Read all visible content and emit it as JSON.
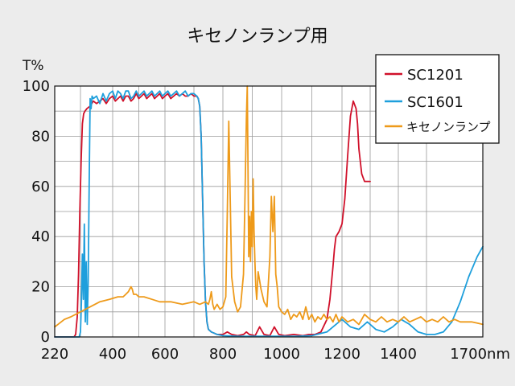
{
  "chart_data": {
    "type": "line",
    "title": "キセノンランプ用",
    "xlabel": "",
    "ylabel": "T%",
    "x_unit": "nm",
    "xlim": [
      220,
      1700
    ],
    "ylim": [
      0,
      100
    ],
    "grid": true,
    "legend_position": "top-right",
    "x_ticks": [
      {
        "value": 220,
        "label": "220"
      },
      {
        "value": 400,
        "label": "400"
      },
      {
        "value": 600,
        "label": "600"
      },
      {
        "value": 800,
        "label": "800"
      },
      {
        "value": 1000,
        "label": "1000"
      },
      {
        "value": 1200,
        "label": "1200"
      },
      {
        "value": 1400,
        "label": "1400"
      },
      {
        "value": 1700,
        "label": "1700nm"
      }
    ],
    "x_grid": [
      220,
      300,
      400,
      500,
      600,
      700,
      800,
      900,
      1000,
      1100,
      1200,
      1300,
      1400,
      1500,
      1700
    ],
    "y_ticks": [
      {
        "value": 0,
        "label": "0"
      },
      {
        "value": 20,
        "label": "20"
      },
      {
        "value": 40,
        "label": "40"
      },
      {
        "value": 60,
        "label": "60"
      },
      {
        "value": 80,
        "label": "80"
      },
      {
        "value": 100,
        "label": "100"
      }
    ],
    "y_grid": [
      0,
      10,
      20,
      30,
      40,
      50,
      60,
      70,
      80,
      90,
      100
    ],
    "series": [
      {
        "name": "SC1201",
        "color": "#d0102a",
        "x": [
          220,
          280,
          285,
          290,
          294,
          298,
          302,
          306,
          310,
          314,
          320,
          330,
          340,
          350,
          360,
          370,
          380,
          390,
          400,
          410,
          420,
          430,
          440,
          450,
          460,
          470,
          480,
          490,
          500,
          510,
          520,
          530,
          540,
          550,
          560,
          570,
          580,
          590,
          600,
          610,
          620,
          630,
          640,
          650,
          660,
          670,
          680,
          690,
          700,
          710,
          715,
          720,
          725,
          730,
          735,
          740,
          745,
          750,
          760,
          770,
          780,
          800,
          815,
          830,
          850,
          870,
          880,
          890,
          910,
          925,
          940,
          960,
          975,
          990,
          1010,
          1040,
          1070,
          1090,
          1110,
          1130,
          1150,
          1160,
          1170,
          1175,
          1180,
          1185,
          1190,
          1200,
          1210,
          1220,
          1230,
          1240,
          1250,
          1255,
          1260,
          1270,
          1280,
          1290,
          1300
        ],
        "y": [
          0,
          0,
          1,
          8,
          25,
          50,
          70,
          85,
          89,
          90,
          91,
          92,
          94,
          93,
          94,
          95,
          93,
          95,
          96,
          94,
          95,
          96,
          94,
          96,
          96,
          94,
          95,
          97,
          95,
          96,
          97,
          95,
          96,
          97,
          95,
          96,
          97,
          95,
          96,
          97,
          95,
          96,
          97,
          96,
          97,
          96,
          96,
          97,
          96,
          96,
          95,
          92,
          80,
          55,
          30,
          14,
          6,
          3,
          2,
          1.5,
          1,
          1,
          2,
          1,
          0.5,
          1,
          2,
          1,
          0.5,
          4,
          1,
          0.5,
          4,
          1,
          0.5,
          1,
          0.5,
          1,
          1,
          2,
          7,
          15,
          28,
          35,
          40,
          41,
          42,
          45,
          55,
          72,
          88,
          94,
          91,
          85,
          75,
          65,
          62,
          62,
          62
        ]
      },
      {
        "name": "SC1601",
        "color": "#1e9fdc",
        "x": [
          220,
          296,
          300,
          303,
          306,
          309,
          312,
          315,
          318,
          321,
          324,
          327,
          330,
          333,
          336,
          340,
          350,
          360,
          370,
          380,
          390,
          400,
          410,
          420,
          430,
          440,
          450,
          460,
          470,
          480,
          490,
          500,
          510,
          520,
          530,
          540,
          550,
          560,
          570,
          580,
          590,
          600,
          610,
          620,
          630,
          640,
          650,
          660,
          670,
          680,
          690,
          700,
          710,
          715,
          720,
          725,
          730,
          735,
          740,
          745,
          750,
          760,
          770,
          780,
          800,
          850,
          900,
          950,
          1000,
          1050,
          1100,
          1150,
          1180,
          1200,
          1230,
          1260,
          1290,
          1320,
          1350,
          1380,
          1410,
          1440,
          1470,
          1500,
          1530,
          1560,
          1590,
          1620,
          1650,
          1680,
          1700
        ],
        "y": [
          0,
          0,
          2,
          14,
          33,
          15,
          45,
          6,
          30,
          5,
          22,
          60,
          95,
          91,
          96,
          95,
          96,
          93,
          97,
          94,
          97,
          98,
          95,
          98,
          97,
          95,
          98,
          98,
          95,
          96,
          98,
          96,
          97,
          98,
          96,
          97,
          98,
          96,
          97,
          98,
          96,
          97,
          98,
          96,
          97,
          98,
          96,
          97,
          98,
          96,
          97,
          97,
          96,
          95,
          92,
          80,
          55,
          30,
          14,
          6,
          3,
          2,
          1.5,
          1,
          0.5,
          0.3,
          0.3,
          0.3,
          0.3,
          0.3,
          0.5,
          2,
          5,
          7,
          4,
          3,
          6,
          3,
          2,
          4,
          7,
          5,
          2,
          1,
          1,
          2,
          6,
          14,
          24,
          32,
          36
        ]
      },
      {
        "name": "キセノンランプ",
        "color": "#ee9a1a",
        "x": [
          220,
          230,
          250,
          270,
          300,
          330,
          360,
          390,
          420,
          440,
          450,
          460,
          470,
          475,
          480,
          490,
          500,
          520,
          550,
          580,
          620,
          660,
          700,
          720,
          740,
          750,
          755,
          760,
          765,
          770,
          780,
          790,
          800,
          810,
          815,
          820,
          825,
          830,
          840,
          850,
          860,
          870,
          875,
          880,
          883,
          886,
          888,
          891,
          894,
          897,
          900,
          903,
          906,
          909,
          912,
          915,
          920,
          930,
          940,
          950,
          960,
          965,
          970,
          975,
          980,
          985,
          990,
          1000,
          1010,
          1020,
          1030,
          1040,
          1050,
          1060,
          1070,
          1080,
          1090,
          1100,
          1110,
          1120,
          1130,
          1140,
          1150,
          1160,
          1170,
          1180,
          1190,
          1200,
          1220,
          1240,
          1260,
          1280,
          1300,
          1320,
          1340,
          1360,
          1380,
          1400,
          1420,
          1440,
          1460,
          1480,
          1500,
          1520,
          1540,
          1560,
          1580,
          1600,
          1620,
          1640,
          1660,
          1680,
          1700
        ],
        "y": [
          4,
          5,
          7,
          8,
          10,
          12,
          14,
          15,
          16,
          16,
          17,
          18,
          20,
          19,
          17,
          17,
          16,
          16,
          15,
          14,
          14,
          13,
          14,
          13,
          14,
          13,
          15,
          18,
          13,
          11,
          13,
          11,
          12,
          16,
          50,
          86,
          55,
          24,
          14,
          10,
          12,
          25,
          55,
          87,
          100,
          60,
          32,
          48,
          30,
          50,
          36,
          63,
          42,
          30,
          20,
          15,
          26,
          19,
          14,
          12,
          32,
          56,
          42,
          56,
          25,
          20,
          12,
          10,
          9,
          11,
          7,
          9,
          8,
          10,
          7,
          12,
          7,
          9,
          6,
          8,
          7,
          9,
          7,
          8,
          6,
          9,
          6,
          8,
          6,
          7,
          5,
          9,
          7,
          6,
          8,
          6,
          7,
          6,
          8,
          6,
          7,
          8,
          6,
          7,
          6,
          8,
          6,
          7,
          6,
          6,
          6,
          5.5,
          5
        ]
      }
    ]
  }
}
